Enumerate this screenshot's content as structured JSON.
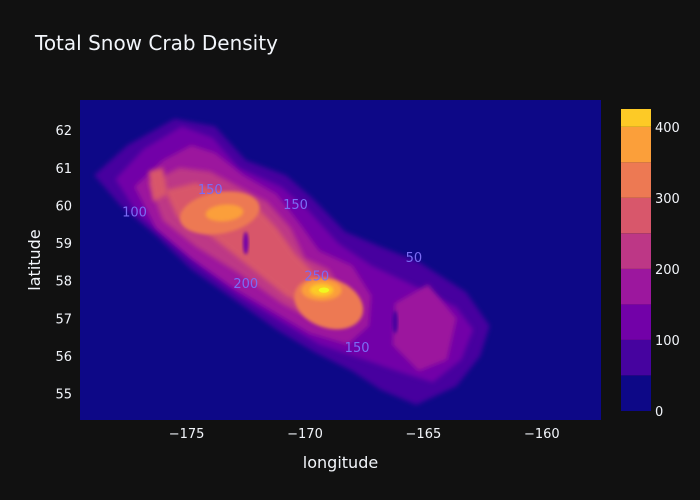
{
  "chart_data": {
    "type": "contour",
    "title": "Total Snow Crab Density",
    "xlabel": "longitude",
    "ylabel": "latitude",
    "xlim": [
      -179.5,
      -157.5
    ],
    "ylim": [
      54.3,
      62.8
    ],
    "x_ticks": [
      -175,
      -170,
      -165,
      -160
    ],
    "y_ticks": [
      55,
      56,
      57,
      58,
      59,
      60,
      61,
      62
    ],
    "x_tick_labels": [
      "−175",
      "−170",
      "−165",
      "−160"
    ],
    "y_tick_labels": [
      "55",
      "56",
      "57",
      "58",
      "59",
      "60",
      "61",
      "62"
    ],
    "grid": false,
    "colorscale": [
      "#0d0887",
      "#46039f",
      "#7201a8",
      "#9c179e",
      "#bd3786",
      "#d8576b",
      "#ed7953",
      "#fb9f3a",
      "#fdca26",
      "#f0f921"
    ],
    "levels": [
      0,
      50,
      100,
      150,
      200,
      250,
      300,
      350,
      400,
      450
    ],
    "colorbar_range": [
      0,
      425
    ],
    "colorbar_ticks": [
      0,
      100,
      200,
      300,
      400
    ],
    "colorbar_tick_labels": [
      "0",
      "100",
      "200",
      "300",
      "400"
    ],
    "contour_labels": [
      {
        "text": "100",
        "lon": -177.2,
        "lat": 59.7
      },
      {
        "text": "150",
        "lon": -174.0,
        "lat": 60.3
      },
      {
        "text": "150",
        "lon": -170.4,
        "lat": 59.9
      },
      {
        "text": "200",
        "lon": -172.5,
        "lat": 57.8
      },
      {
        "text": "250",
        "lon": -169.5,
        "lat": 58.0
      },
      {
        "text": "150",
        "lon": -167.8,
        "lat": 56.1
      },
      {
        "text": "50",
        "lon": -165.4,
        "lat": 58.5
      }
    ],
    "density_peaks": [
      {
        "lon": -169.2,
        "lat": 57.75,
        "value": 430
      },
      {
        "lon": -173.5,
        "lat": 59.8,
        "value": 330
      },
      {
        "lon": -168.0,
        "lat": 57.0,
        "value": 290
      },
      {
        "lon": -176.2,
        "lat": 60.5,
        "value": 210
      },
      {
        "lon": -174.8,
        "lat": 61.5,
        "value": 160
      },
      {
        "lon": -171.6,
        "lat": 60.6,
        "value": 220
      },
      {
        "lon": -164.8,
        "lat": 56.8,
        "value": 160
      },
      {
        "lon": -171.4,
        "lat": 58.5,
        "value": 200
      }
    ]
  }
}
